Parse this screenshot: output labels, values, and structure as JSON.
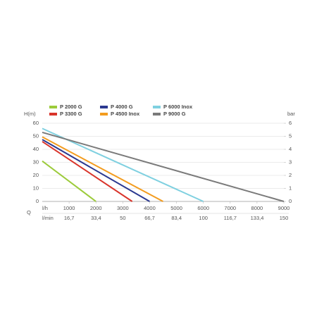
{
  "chart_data": {
    "type": "line",
    "y_label": "H(m)",
    "y2_label": "bar",
    "x_unit": "l/h",
    "x2_unit": "l/min",
    "x_axis_label": "Q",
    "xlim": [
      0,
      9000
    ],
    "xticks": [
      1000,
      2000,
      3000,
      4000,
      5000,
      6000,
      7000,
      8000,
      9000
    ],
    "x2lim": [
      0,
      150
    ],
    "x2ticks": [
      {
        "value": 16.7,
        "label": "16,7"
      },
      {
        "value": 33.4,
        "label": "33,4"
      },
      50,
      {
        "value": 66.7,
        "label": "66,7"
      },
      {
        "value": 83.4,
        "label": "83,4"
      },
      100,
      {
        "value": 116.7,
        "label": "116,7"
      },
      {
        "value": 133.4,
        "label": "133,4"
      },
      150
    ],
    "ylim": [
      0,
      60
    ],
    "yticks": [
      0,
      10,
      20,
      30,
      40,
      50,
      60
    ],
    "y2lim": [
      0,
      6
    ],
    "y2ticks": [
      0,
      1,
      2,
      3,
      4,
      5,
      6
    ],
    "grid": true,
    "series": [
      {
        "name": "P 2000 G",
        "color": "#9ccb3b",
        "x": [
          0,
          2000
        ],
        "values": [
          31,
          0
        ]
      },
      {
        "name": "P 3300 G",
        "color": "#d9342b",
        "x": [
          0,
          3350
        ],
        "values": [
          46,
          0
        ]
      },
      {
        "name": "P 4000 G",
        "color": "#2b3990",
        "x": [
          0,
          4000
        ],
        "values": [
          47.5,
          0
        ]
      },
      {
        "name": "P 4500 Inox",
        "color": "#f39c1f",
        "x": [
          0,
          4500
        ],
        "values": [
          49.5,
          0
        ]
      },
      {
        "name": "P 6000 Inox",
        "color": "#7fd0e0",
        "x": [
          0,
          6000
        ],
        "values": [
          56,
          0
        ]
      },
      {
        "name": "P 9000 G",
        "color": "#7a7a7a",
        "x": [
          0,
          9000
        ],
        "values": [
          53,
          0
        ]
      }
    ]
  }
}
